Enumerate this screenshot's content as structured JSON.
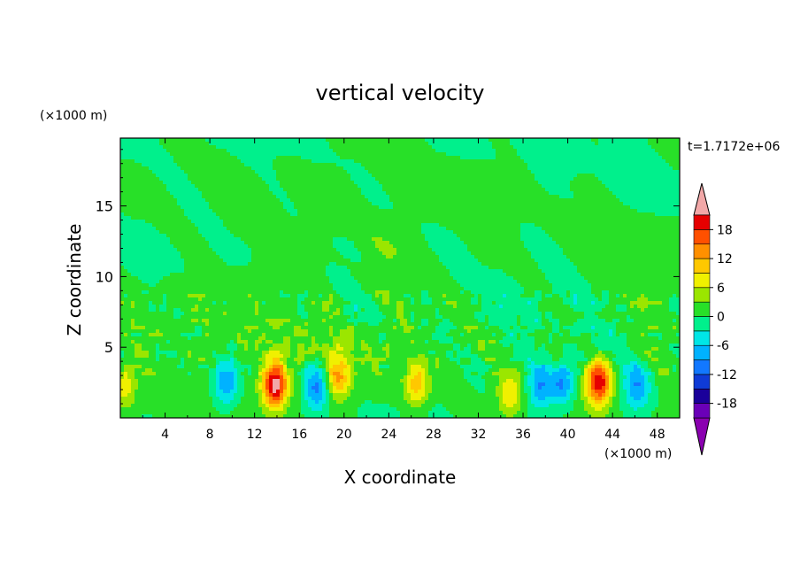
{
  "chart_data": {
    "type": "heatmap",
    "title": "vertical velocity",
    "xlabel": "X coordinate",
    "ylabel": "Z coordinate",
    "x_unit": "(×1000 m)",
    "y_unit": "(×1000 m)",
    "time_label": "t=1.7172e+06",
    "xlim": [
      0,
      50
    ],
    "ylim": [
      0,
      19.8
    ],
    "x_ticks": [
      4,
      8,
      12,
      16,
      20,
      24,
      28,
      32,
      36,
      40,
      44,
      48
    ],
    "y_ticks": [
      5,
      10,
      15
    ],
    "colorbar": {
      "levels": [
        -21,
        -18,
        -15,
        -12,
        -9,
        -6,
        -3,
        0,
        3,
        6,
        9,
        12,
        15,
        18,
        21
      ],
      "tick_labels": [
        18,
        12,
        6,
        0,
        -6,
        -12,
        -18
      ],
      "colors": [
        "#6a00b8",
        "#1a009a",
        "#0f3bd6",
        "#1278ff",
        "#00b2ff",
        "#00e6e6",
        "#00f08c",
        "#28e028",
        "#9be600",
        "#f0f000",
        "#ffc800",
        "#ff9000",
        "#ff5000",
        "#e60000"
      ],
      "over_color": "#f2a8a8",
      "under_color": "#8a00b0"
    },
    "background_level": 0.5,
    "features": [
      {
        "x": 13.8,
        "z": 2.3,
        "w": 0.22
      },
      {
        "x": 42.8,
        "z": 2.6,
        "w": 0.21
      },
      {
        "x": 19.5,
        "z": 3.0,
        "w": 0.12
      },
      {
        "x": 26.5,
        "z": 2.3,
        "w": 0.1
      },
      {
        "x": 34.8,
        "z": 1.6,
        "w": 0.08
      },
      {
        "x": 0.4,
        "z": 2.2,
        "w": 0.08
      },
      {
        "x": 9.5,
        "z": 2.5,
        "w": -0.1
      },
      {
        "x": 17.5,
        "z": 2.2,
        "w": -0.11
      },
      {
        "x": 37.5,
        "z": 2.2,
        "w": -0.09
      },
      {
        "x": 39.5,
        "z": 2.5,
        "w": -0.1
      },
      {
        "x": 46.2,
        "z": 2.2,
        "w": -0.09
      }
    ]
  }
}
